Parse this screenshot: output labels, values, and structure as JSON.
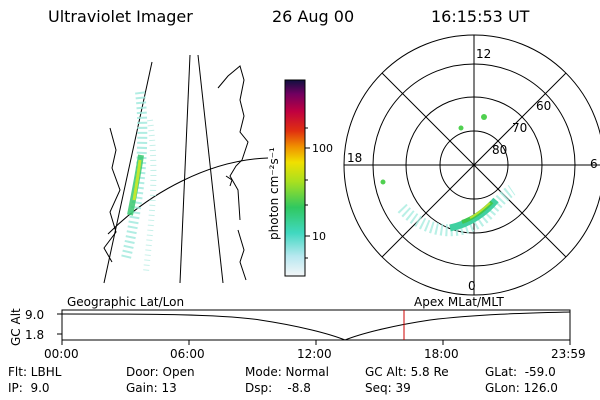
{
  "header": {
    "instrument": "Ultraviolet Imager",
    "date": "26 Aug 00",
    "time": "16:15:53 UT"
  },
  "colorbar": {
    "unit_label": "photon cm⁻²s⁻¹",
    "ticks": [
      "100",
      "10"
    ]
  },
  "polar": {
    "mlt_labels": [
      "12",
      "18",
      "6",
      "0"
    ],
    "lat_labels": [
      "60",
      "70",
      "80"
    ]
  },
  "timeline": {
    "left_title": "Geographic Lat/Lon",
    "right_title": "Apex MLat/MLT",
    "axis_title": "GC Alt",
    "y_ticks": [
      "9.0",
      "1.8"
    ],
    "x_ticks": [
      "00:00",
      "06:00",
      "12:00",
      "18:00",
      "23:59"
    ]
  },
  "footer": {
    "filter": "Flt: LBHL",
    "ip": "IP:  9.0",
    "door": "Door: Open",
    "gain": "Gain: 13",
    "mode": "Mode: Normal",
    "dsp": "Dsp:    -8.8",
    "gc_alt": "GC Alt: 5.8 Re",
    "seq": "Seq: 39",
    "glat": "GLat:  -59.0",
    "glon": "GLon: 126.0"
  },
  "colors": {
    "accent_line": "#cc0000",
    "colorbar_stops": [
      "#e8eef4",
      "#50e0c8",
      "#40c850",
      "#c8e828",
      "#f0a000",
      "#e02000",
      "#c00050",
      "#600050",
      "#101040"
    ]
  }
}
